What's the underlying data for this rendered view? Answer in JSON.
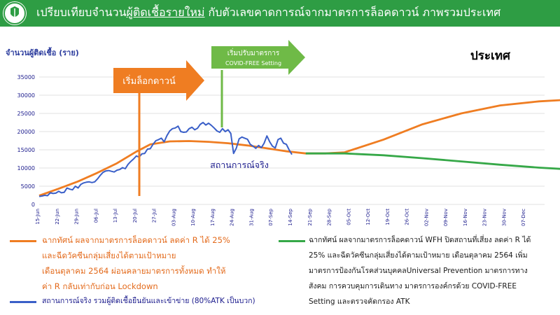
{
  "header": {
    "title_prefix": "เปรียบเทียบจำนวน",
    "title_underlined": "ผู้ติดเชื้อรายใหม่",
    "title_suffix": " กับตัวเลขคาดการณ์จากมาตรการล็อคดาวน์ ภาพรวมประเทศ",
    "bg_color": "#2e9d44"
  },
  "region_label": "ประเทศ",
  "chart_data": {
    "type": "line",
    "ylabel": "จำนวนผู้ติดเชื้อ (ราย)",
    "ylim": [
      0,
      35000
    ],
    "yticks": [
      0,
      5000,
      10000,
      15000,
      20000,
      25000,
      30000,
      35000
    ],
    "x_labels": [
      "15-Jun",
      "22-Jun",
      "29-Jun",
      "06-Jul",
      "13-Jul",
      "20-Jul",
      "27-Jul",
      "03-Aug",
      "10-Aug",
      "17-Aug",
      "24-Aug",
      "31-Aug",
      "07-Sep",
      "14-Sep",
      "21-Sep",
      "28-Sep",
      "05-Oct",
      "12-Oct",
      "19-Oct",
      "26-Oct",
      "02-Nov",
      "09-Nov",
      "16-Nov",
      "23-Nov",
      "30-Nov",
      "07-Dec"
    ],
    "grid": "horizontal",
    "series": [
      {
        "name": "สถานการณ์จริง",
        "color": "#3a5fc8",
        "x_day": [
          0,
          1,
          2,
          3,
          4,
          5,
          6,
          7,
          8,
          9,
          10,
          11,
          12,
          13,
          14,
          15,
          16,
          17,
          18,
          19,
          20,
          21,
          22,
          23,
          24,
          25,
          26,
          27,
          28,
          29,
          30,
          31,
          32,
          33,
          34,
          35,
          36,
          37,
          38,
          39,
          40,
          41,
          42,
          43,
          44,
          45,
          46,
          47,
          48,
          49,
          50,
          51,
          52,
          53,
          54,
          55,
          56,
          57,
          58,
          59,
          60,
          61,
          62,
          63,
          64,
          65,
          66,
          67,
          68,
          69,
          70,
          71,
          72,
          73,
          74,
          75,
          76,
          77,
          78,
          79,
          80,
          81,
          82,
          83,
          84,
          85,
          86,
          87,
          88,
          89,
          90,
          91
        ],
        "values": [
          2200,
          2300,
          2500,
          2400,
          3200,
          3000,
          3100,
          3600,
          3200,
          3300,
          4500,
          4200,
          4000,
          5000,
          4500,
          5500,
          5900,
          6100,
          6200,
          6000,
          6200,
          7000,
          8000,
          8800,
          9200,
          9300,
          9100,
          8900,
          9400,
          9600,
          10100,
          9800,
          11000,
          11800,
          12500,
          13300,
          13000,
          13900,
          14000,
          15200,
          15300,
          16500,
          17500,
          17800,
          18200,
          17200,
          18900,
          20200,
          20800,
          21000,
          21500,
          20000,
          19800,
          19900,
          20800,
          21200,
          20500,
          20900,
          22000,
          22500,
          21800,
          22300,
          21700,
          21000,
          20200,
          19800,
          20800,
          20000,
          20500,
          19500,
          14000,
          15500,
          18000,
          18500,
          18200,
          17900,
          16500,
          16000,
          15400,
          16200,
          15600,
          16800,
          18800,
          17200,
          16000,
          15500,
          17800,
          18200,
          16800,
          16500,
          15000,
          13700
        ]
      },
      {
        "name": "ฉากทัศน์ ผลจากมาตรการล็อคดาวน์",
        "color": "#ef7d22",
        "x_day": [
          0,
          7,
          14,
          21,
          28,
          35,
          40,
          47,
          54,
          61,
          68,
          75,
          82,
          89,
          96,
          103,
          110,
          124,
          138,
          152,
          166,
          180,
          194,
          210
        ],
        "values": [
          2400,
          4300,
          6300,
          8700,
          11300,
          14500,
          16500,
          17300,
          17400,
          17200,
          16800,
          16200,
          15400,
          14600,
          14000,
          14000,
          14300,
          17800,
          22000,
          25000,
          27200,
          28300,
          28900,
          29400
        ]
      },
      {
        "name": "ฉากทัศน์ ผลจากมาตรการล็อคดาวน์ WFH",
        "color": "#36a848",
        "x_day": [
          96,
          103,
          110,
          124,
          138,
          152,
          166,
          180,
          194,
          210
        ],
        "values": [
          14000,
          14000,
          14000,
          13500,
          12700,
          11800,
          10900,
          10100,
          9500,
          8800
        ]
      }
    ]
  },
  "annotations": {
    "lockdown_label": "เริ่มล็อกดาวน์",
    "covid_free_label_line1": "เริ่มปรับมาตรการ",
    "covid_free_label_line2": "COVID-FREE Setting",
    "actual_label": "สถานการณ์จริง",
    "lockdown_color": "#ef7d22",
    "covid_free_color": "#6fba47"
  },
  "legend": {
    "orange_lines": [
      "ฉากทัศน์ ผลจากมาตรการล็อคดาวน์ ลดค่า R ได้ 25%",
      "และฉีดวัคซีนกลุ่มเสี่ยงได้ตามเป้าหมาย",
      "เดือนตุลาคม 2564 ผ่อนคลายมาตรการทั้งหมด ทำให้",
      "ค่า R กลับเท่ากับก่อน Lockdown"
    ],
    "blue_text": "สถานการณ์จริง รวมผู้ติดเชื้อยืนยันและเข้าข่าย (80%ATK เป็นบวก)",
    "green_lines": [
      "ฉากทัศน์ ผลจากมาตรการล็อคดาวน์ WFH ปิดสถานที่เสี่ยง ลดค่า R ได้",
      "25% และฉีดวัคซีนกลุ่มเสี่ยงได้ตามเป้าหมาย เดือนตุลาคม 2564 เพิ่ม",
      "มาตรการป้องกันโรคส่วนบุคคลUniversal Prevention มาตรการทาง",
      "สังคม การควบคุมการเดินทาง มาตรการองค์กรด้วย COVID-FREE",
      "Setting และตรวจคัดกรอง ATK"
    ]
  }
}
